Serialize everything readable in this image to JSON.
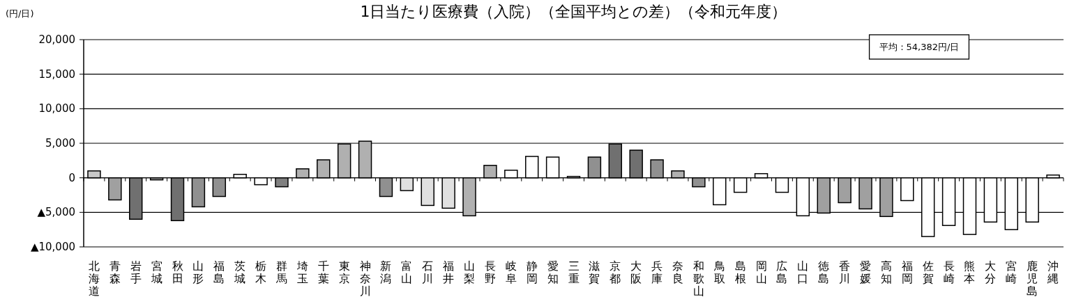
{
  "chart_data": {
    "type": "bar",
    "title": "1日当たり医療費（入院）（全国平均との差）（令和元年度）",
    "ylabel": "(円/日)",
    "annotations": [
      "平均：54,382円/日"
    ],
    "categories": [
      "北海道",
      "青森",
      "岩手",
      "宮城",
      "秋田",
      "山形",
      "福島",
      "茨城",
      "栃木",
      "群馬",
      "埼玉",
      "千葉",
      "東京",
      "神奈川",
      "新潟",
      "富山",
      "石川",
      "福井",
      "山梨",
      "長野",
      "岐阜",
      "静岡",
      "愛知",
      "三重",
      "滋賀",
      "京都",
      "大阪",
      "兵庫",
      "奈良",
      "和歌山",
      "鳥取",
      "島根",
      "岡山",
      "広島",
      "山口",
      "徳島",
      "香川",
      "愛媛",
      "高知",
      "福岡",
      "佐賀",
      "長崎",
      "熊本",
      "大分",
      "宮崎",
      "鹿児島",
      "沖縄"
    ],
    "values": [
      1000,
      -3200,
      -6000,
      -300,
      -6200,
      -4200,
      -2700,
      500,
      -1000,
      -1300,
      1300,
      2600,
      4900,
      5300,
      -2700,
      -1850,
      -4000,
      -4400,
      -5500,
      1800,
      1100,
      3100,
      3000,
      200,
      3000,
      4900,
      4000,
      2600,
      1000,
      -1300,
      -3900,
      -2100,
      600,
      -2100,
      -5500,
      -5100,
      -3600,
      -4500,
      -5600,
      -3300,
      -8500,
      -6900,
      -8200,
      -6400,
      -7500,
      -6400,
      400
    ],
    "colors": [
      "#c8c8c8",
      "#a0a0a0",
      "#707070",
      "#a0a0a0",
      "#707070",
      "#909090",
      "#909090",
      "#ffffff",
      "#ffffff",
      "#808080",
      "#b0b0b0",
      "#b0b0b0",
      "#b0b0b0",
      "#b0b0b0",
      "#909090",
      "#e0e0e0",
      "#e0e0e0",
      "#e0e0e0",
      "#b0b0b0",
      "#b0b0b0",
      "#ffffff",
      "#ffffff",
      "#ffffff",
      "#ffffff",
      "#909090",
      "#707070",
      "#707070",
      "#909090",
      "#b0b0b0",
      "#909090",
      "#ffffff",
      "#ffffff",
      "#ffffff",
      "#ffffff",
      "#ffffff",
      "#a0a0a0",
      "#a0a0a0",
      "#a0a0a0",
      "#a0a0a0",
      "#ffffff",
      "#ffffff",
      "#ffffff",
      "#ffffff",
      "#ffffff",
      "#ffffff",
      "#ffffff",
      "#ffffff"
    ],
    "ylim": [
      -10000,
      20000
    ],
    "yticks": [
      {
        "value": -10000,
        "label": "▲10,000"
      },
      {
        "value": -5000,
        "label": "▲5,000"
      },
      {
        "value": 0,
        "label": "0"
      },
      {
        "value": 5000,
        "label": "5,000"
      },
      {
        "value": 10000,
        "label": "10,000"
      },
      {
        "value": 15000,
        "label": "15,000"
      },
      {
        "value": 20000,
        "label": "20,000"
      }
    ],
    "grid": "y"
  }
}
